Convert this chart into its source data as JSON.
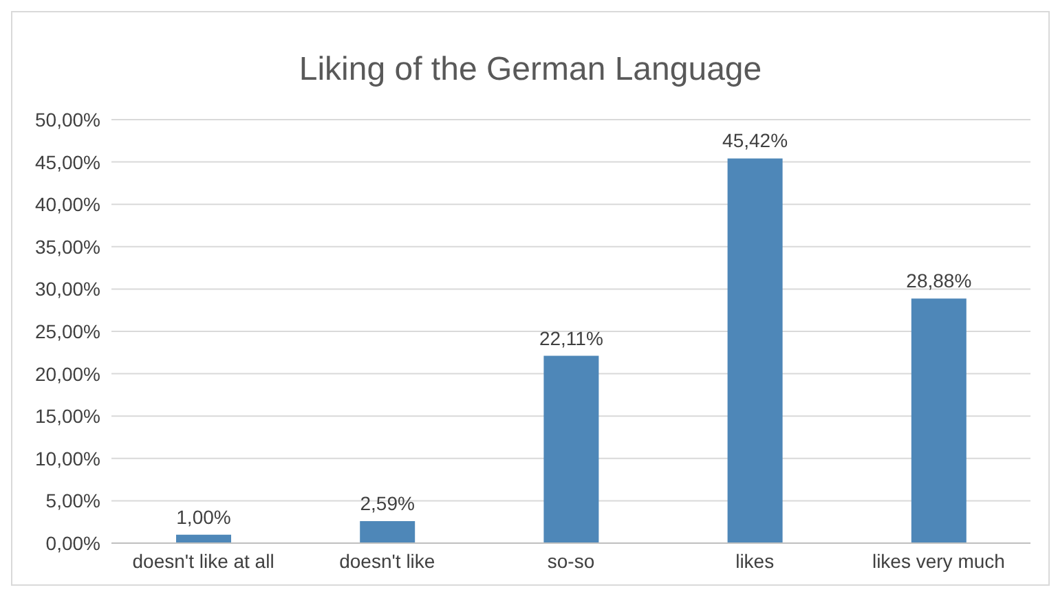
{
  "chart_data": {
    "type": "bar",
    "title": "Liking of the German Language",
    "categories": [
      "doesn't like at all",
      "doesn't like",
      "so-so",
      "likes",
      "likes very much"
    ],
    "values": [
      1.0,
      2.59,
      22.11,
      45.42,
      28.88
    ],
    "value_labels": [
      "1,00%",
      "2,59%",
      "22,11%",
      "45,42%",
      "28,88%"
    ],
    "color": "#4e87b8",
    "ylim": [
      0,
      50
    ],
    "yticks": [
      {
        "value": 0,
        "label": "0,00%"
      },
      {
        "value": 5,
        "label": "5,00%"
      },
      {
        "value": 10,
        "label": "10,00%"
      },
      {
        "value": 15,
        "label": "15,00%"
      },
      {
        "value": 20,
        "label": "20,00%"
      },
      {
        "value": 25,
        "label": "25,00%"
      },
      {
        "value": 30,
        "label": "30,00%"
      },
      {
        "value": 35,
        "label": "35,00%"
      },
      {
        "value": 40,
        "label": "40,00%"
      },
      {
        "value": 45,
        "label": "45,00%"
      },
      {
        "value": 50,
        "label": "50,00%"
      }
    ],
    "grid": "y"
  }
}
